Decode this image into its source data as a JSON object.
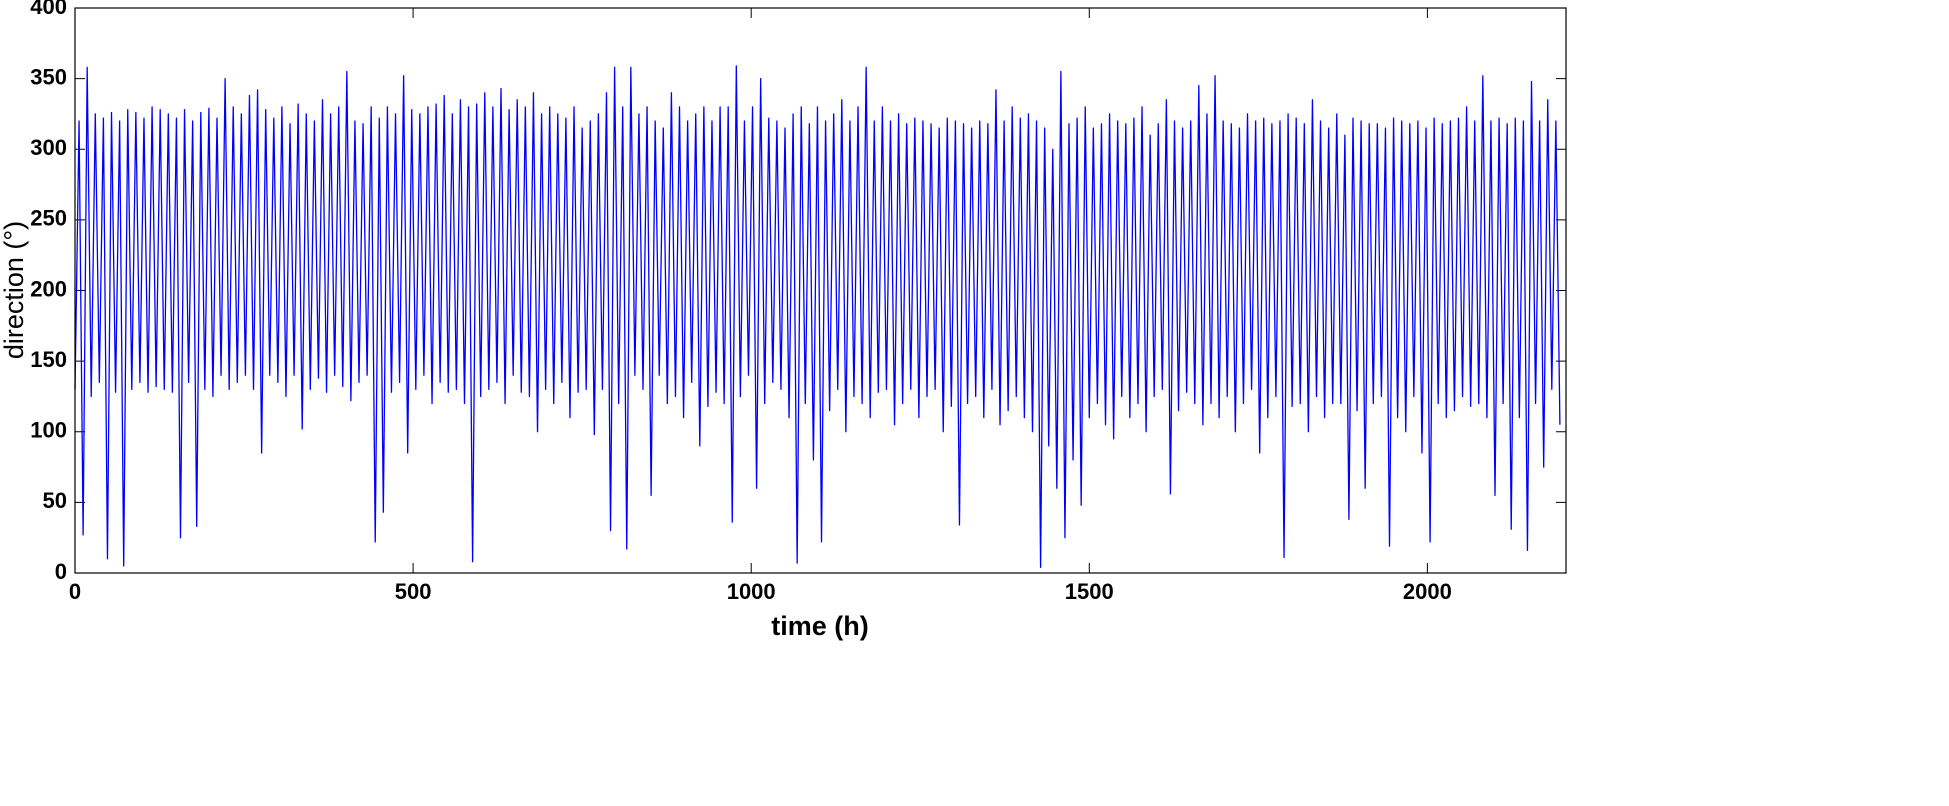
{
  "chart_data": {
    "type": "line",
    "xlabel": "time (h)",
    "ylabel": "direction (°)",
    "xlim": [
      0,
      2205
    ],
    "ylim": [
      0,
      400
    ],
    "xticks": [
      0,
      500,
      1000,
      1500,
      2000
    ],
    "yticks": [
      0,
      50,
      100,
      150,
      200,
      250,
      300,
      350,
      400
    ],
    "grid": false,
    "x": [
      0,
      6,
      12,
      18,
      24,
      30,
      36,
      42,
      48,
      54,
      60,
      66,
      72,
      78,
      84,
      90,
      96,
      102,
      108,
      114,
      120,
      126,
      132,
      138,
      144,
      150,
      156,
      162,
      168,
      174,
      180,
      186,
      192,
      198,
      204,
      210,
      216,
      222,
      228,
      234,
      240,
      246,
      252,
      258,
      264,
      270,
      276,
      282,
      288,
      294,
      300,
      306,
      312,
      318,
      324,
      330,
      336,
      342,
      348,
      354,
      360,
      366,
      372,
      378,
      384,
      390,
      396,
      402,
      408,
      414,
      420,
      426,
      432,
      438,
      444,
      450,
      456,
      462,
      468,
      474,
      480,
      486,
      492,
      498,
      504,
      510,
      516,
      522,
      528,
      534,
      540,
      546,
      552,
      558,
      564,
      570,
      576,
      582,
      588,
      594,
      600,
      606,
      612,
      618,
      624,
      630,
      636,
      642,
      648,
      654,
      660,
      666,
      672,
      678,
      684,
      690,
      696,
      702,
      708,
      714,
      720,
      726,
      732,
      738,
      744,
      750,
      756,
      762,
      768,
      774,
      780,
      786,
      792,
      798,
      804,
      810,
      816,
      822,
      828,
      834,
      840,
      846,
      852,
      858,
      864,
      870,
      876,
      882,
      888,
      894,
      900,
      906,
      912,
      918,
      924,
      930,
      936,
      942,
      948,
      954,
      960,
      966,
      972,
      978,
      984,
      990,
      996,
      1002,
      1008,
      1014,
      1020,
      1026,
      1032,
      1038,
      1044,
      1050,
      1056,
      1062,
      1068,
      1074,
      1080,
      1086,
      1092,
      1098,
      1104,
      1110,
      1116,
      1122,
      1128,
      1134,
      1140,
      1146,
      1152,
      1158,
      1164,
      1170,
      1176,
      1182,
      1188,
      1194,
      1200,
      1206,
      1212,
      1218,
      1224,
      1230,
      1236,
      1242,
      1248,
      1254,
      1260,
      1266,
      1272,
      1278,
      1284,
      1290,
      1296,
      1302,
      1308,
      1314,
      1320,
      1326,
      1332,
      1338,
      1344,
      1350,
      1356,
      1362,
      1368,
      1374,
      1380,
      1386,
      1392,
      1398,
      1404,
      1410,
      1416,
      1422,
      1428,
      1434,
      1440,
      1446,
      1452,
      1458,
      1464,
      1470,
      1476,
      1482,
      1488,
      1494,
      1500,
      1506,
      1512,
      1518,
      1524,
      1530,
      1536,
      1542,
      1548,
      1554,
      1560,
      1566,
      1572,
      1578,
      1584,
      1590,
      1596,
      1602,
      1608,
      1614,
      1620,
      1626,
      1632,
      1638,
      1644,
      1650,
      1656,
      1662,
      1668,
      1674,
      1680,
      1686,
      1692,
      1698,
      1704,
      1710,
      1716,
      1722,
      1728,
      1734,
      1740,
      1746,
      1752,
      1758,
      1764,
      1770,
      1776,
      1782,
      1788,
      1794,
      1800,
      1806,
      1812,
      1818,
      1824,
      1830,
      1836,
      1842,
      1848,
      1854,
      1860,
      1866,
      1872,
      1878,
      1884,
      1890,
      1896,
      1902,
      1908,
      1914,
      1920,
      1926,
      1932,
      1938,
      1944,
      1950,
      1956,
      1962,
      1968,
      1974,
      1980,
      1986,
      1992,
      1998,
      2004,
      2010,
      2016,
      2022,
      2028,
      2034,
      2040,
      2046,
      2052,
      2058,
      2064,
      2070,
      2076,
      2082,
      2088,
      2094,
      2100,
      2106,
      2112,
      2118,
      2124,
      2130,
      2136,
      2142,
      2148,
      2154,
      2160,
      2166,
      2172,
      2178,
      2184,
      2190,
      2196
    ],
    "series": [
      {
        "color": "#0000ff",
        "values": [
          130,
          320,
          27,
          358,
          125,
          325,
          135,
          322,
          10,
          326,
          128,
          320,
          5,
          328,
          130,
          326,
          135,
          322,
          128,
          330,
          132,
          328,
          130,
          325,
          128,
          322,
          25,
          328,
          135,
          320,
          33,
          326,
          130,
          329,
          125,
          322,
          140,
          350,
          130,
          330,
          135,
          325,
          140,
          338,
          130,
          342,
          85,
          328,
          140,
          322,
          135,
          330,
          125,
          318,
          140,
          332,
          102,
          325,
          130,
          320,
          138,
          335,
          128,
          325,
          140,
          330,
          132,
          355,
          122,
          320,
          135,
          318,
          140,
          330,
          22,
          322,
          43,
          330,
          128,
          325,
          135,
          352,
          85,
          328,
          130,
          325,
          140,
          330,
          120,
          332,
          135,
          338,
          128,
          325,
          130,
          335,
          120,
          330,
          8,
          332,
          125,
          340,
          130,
          330,
          135,
          343,
          120,
          328,
          140,
          335,
          128,
          330,
          125,
          340,
          100,
          325,
          130,
          330,
          120,
          325,
          135,
          322,
          110,
          330,
          128,
          315,
          130,
          320,
          98,
          325,
          130,
          340,
          30,
          358,
          120,
          330,
          17,
          358,
          140,
          325,
          130,
          330,
          55,
          320,
          140,
          315,
          120,
          340,
          125,
          330,
          110,
          320,
          135,
          325,
          90,
          330,
          118,
          320,
          128,
          330,
          120,
          330,
          36,
          359,
          125,
          320,
          140,
          330,
          60,
          350,
          120,
          322,
          135,
          320,
          130,
          315,
          110,
          325,
          7,
          330,
          120,
          318,
          80,
          330,
          22,
          320,
          115,
          325,
          130,
          335,
          100,
          320,
          125,
          330,
          120,
          358,
          110,
          320,
          128,
          330,
          130,
          320,
          105,
          325,
          120,
          318,
          130,
          322,
          110,
          320,
          125,
          318,
          130,
          315,
          100,
          322,
          118,
          320,
          34,
          318,
          120,
          315,
          125,
          320,
          110,
          318,
          130,
          342,
          105,
          320,
          115,
          330,
          125,
          322,
          110,
          325,
          100,
          320,
          4,
          315,
          90,
          300,
          60,
          355,
          25,
          318,
          80,
          322,
          48,
          330,
          110,
          315,
          120,
          318,
          105,
          325,
          95,
          320,
          125,
          318,
          110,
          322,
          120,
          330,
          100,
          310,
          125,
          318,
          130,
          335,
          56,
          320,
          115,
          315,
          128,
          320,
          120,
          345,
          105,
          325,
          120,
          352,
          110,
          320,
          125,
          318,
          100,
          315,
          120,
          325,
          130,
          320,
          85,
          322,
          110,
          318,
          125,
          320,
          11,
          325,
          118,
          322,
          120,
          318,
          100,
          335,
          125,
          320,
          110,
          315,
          120,
          325,
          120,
          310,
          38,
          322,
          115,
          320,
          60,
          318,
          120,
          318,
          125,
          315,
          19,
          322,
          110,
          320,
          100,
          318,
          125,
          320,
          85,
          315,
          22,
          322,
          120,
          318,
          110,
          320,
          115,
          322,
          125,
          330,
          118,
          320,
          120,
          352,
          110,
          320,
          55,
          322,
          120,
          318,
          31,
          322,
          110,
          320,
          16,
          348,
          120,
          320,
          75,
          335,
          130,
          320,
          105
        ]
      }
    ]
  }
}
